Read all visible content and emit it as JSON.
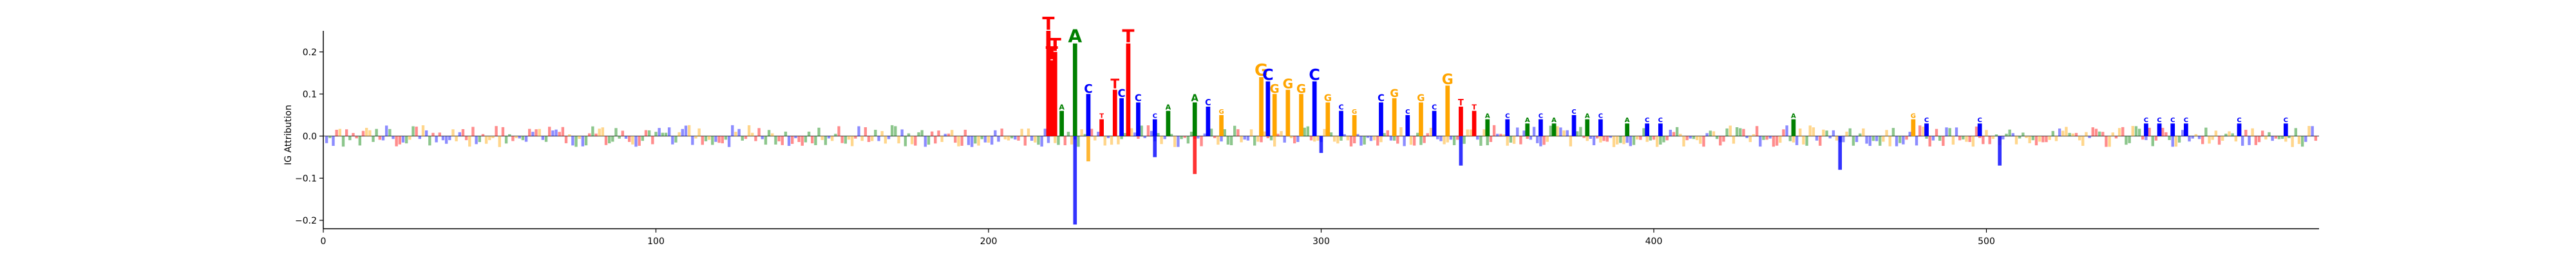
{
  "chart_data": {
    "type": "sequence-logo",
    "title": "",
    "xlabel": "",
    "ylabel": "IG Attribution",
    "xlim": [
      0,
      600
    ],
    "ylim": [
      -0.22,
      0.25
    ],
    "x_ticks": [
      0,
      100,
      200,
      300,
      400,
      500
    ],
    "y_ticks": [
      -0.2,
      -0.1,
      0.0,
      0.1,
      0.2
    ],
    "x_tick_labels": [
      "0",
      "100",
      "200",
      "300",
      "400",
      "500"
    ],
    "y_tick_labels": [
      "−0.2",
      "−0.1",
      "0.0",
      "0.1",
      "0.2"
    ],
    "grid": false,
    "legend": "none",
    "base_colors": {
      "A": "#008000",
      "C": "#0000ff",
      "G": "#ffa500",
      "T": "#ff0000"
    },
    "positions": {
      "x": [
        218,
        219,
        220,
        222,
        226,
        230,
        234,
        238,
        240,
        242,
        245,
        250,
        254,
        262,
        266,
        270,
        282,
        284,
        286,
        290,
        294,
        298,
        302,
        306,
        310,
        318,
        322,
        326,
        330,
        334,
        338,
        342,
        346,
        350,
        356,
        362,
        366,
        370,
        376,
        380,
        384,
        392,
        398,
        402,
        442,
        478,
        482,
        498,
        548,
        552,
        556,
        560,
        576,
        590
      ],
      "value": [
        0.25,
        0.18,
        0.2,
        0.06,
        0.22,
        0.1,
        0.04,
        0.11,
        0.09,
        0.22,
        0.08,
        0.04,
        0.06,
        0.08,
        0.07,
        0.05,
        0.14,
        0.13,
        0.1,
        0.11,
        0.1,
        0.13,
        0.08,
        0.06,
        0.05,
        0.08,
        0.09,
        0.05,
        0.08,
        0.06,
        0.12,
        0.07,
        0.06,
        0.04,
        0.04,
        0.03,
        0.04,
        0.03,
        0.05,
        0.04,
        0.04,
        0.03,
        0.03,
        0.03,
        0.04,
        0.04,
        0.03,
        0.03,
        0.03,
        0.03,
        0.03,
        0.03,
        0.03,
        0.03
      ],
      "base": [
        "T",
        "T",
        "T",
        "A",
        "A",
        "C",
        "T",
        "T",
        "C",
        "T",
        "C",
        "C",
        "A",
        "A",
        "C",
        "G",
        "G",
        "C",
        "G",
        "G",
        "G",
        "C",
        "G",
        "C",
        "G",
        "C",
        "G",
        "C",
        "G",
        "C",
        "G",
        "T",
        "T",
        "A",
        "C",
        "A",
        "C",
        "A",
        "C",
        "A",
        "C",
        "A",
        "C",
        "C",
        "A",
        "G",
        "C",
        "C",
        "C",
        "C",
        "C",
        "C",
        "C",
        "C"
      ]
    }
  }
}
